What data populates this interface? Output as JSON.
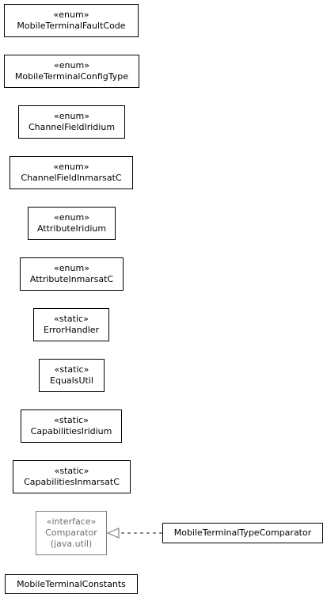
{
  "classes": [
    {
      "id": "mobile-terminal-fault-code",
      "stereotype": "«enum»",
      "name": "MobileTerminalFaultCode"
    },
    {
      "id": "mobile-terminal-config-type",
      "stereotype": "«enum»",
      "name": "MobileTerminalConfigType"
    },
    {
      "id": "channel-field-iridium",
      "stereotype": "«enum»",
      "name": "ChannelFieldIridium"
    },
    {
      "id": "channel-field-inmarsat-c",
      "stereotype": "«enum»",
      "name": "ChannelFieldInmarsatC"
    },
    {
      "id": "attribute-iridium",
      "stereotype": "«enum»",
      "name": "AttributeIridium"
    },
    {
      "id": "attribute-inmarsat-c",
      "stereotype": "«enum»",
      "name": "AttributeInmarsatC"
    },
    {
      "id": "error-handler",
      "stereotype": "«static»",
      "name": "ErrorHandler"
    },
    {
      "id": "equals-util",
      "stereotype": "«static»",
      "name": "EqualsUtil"
    },
    {
      "id": "capabilities-iridium",
      "stereotype": "«static»",
      "name": "CapabilitiesIridium"
    },
    {
      "id": "capabilities-inmarsat-c",
      "stereotype": "«static»",
      "name": "CapabilitiesInmarsatC"
    },
    {
      "id": "comparator",
      "stereotype": "«interface»",
      "name": "Comparator",
      "package": "(java.util)"
    },
    {
      "id": "mobile-terminal-type-comparator",
      "name": "MobileTerminalTypeComparator"
    },
    {
      "id": "mobile-terminal-constants",
      "name": "MobileTerminalConstants"
    }
  ],
  "relations": [
    {
      "type": "realization",
      "from": "MobileTerminalTypeComparator",
      "to": "Comparator"
    }
  ],
  "colors": {
    "border": "#000000",
    "external_border": "#7f7f7f",
    "external_text": "#6e6e6e",
    "edge": "#7f7f7f"
  }
}
